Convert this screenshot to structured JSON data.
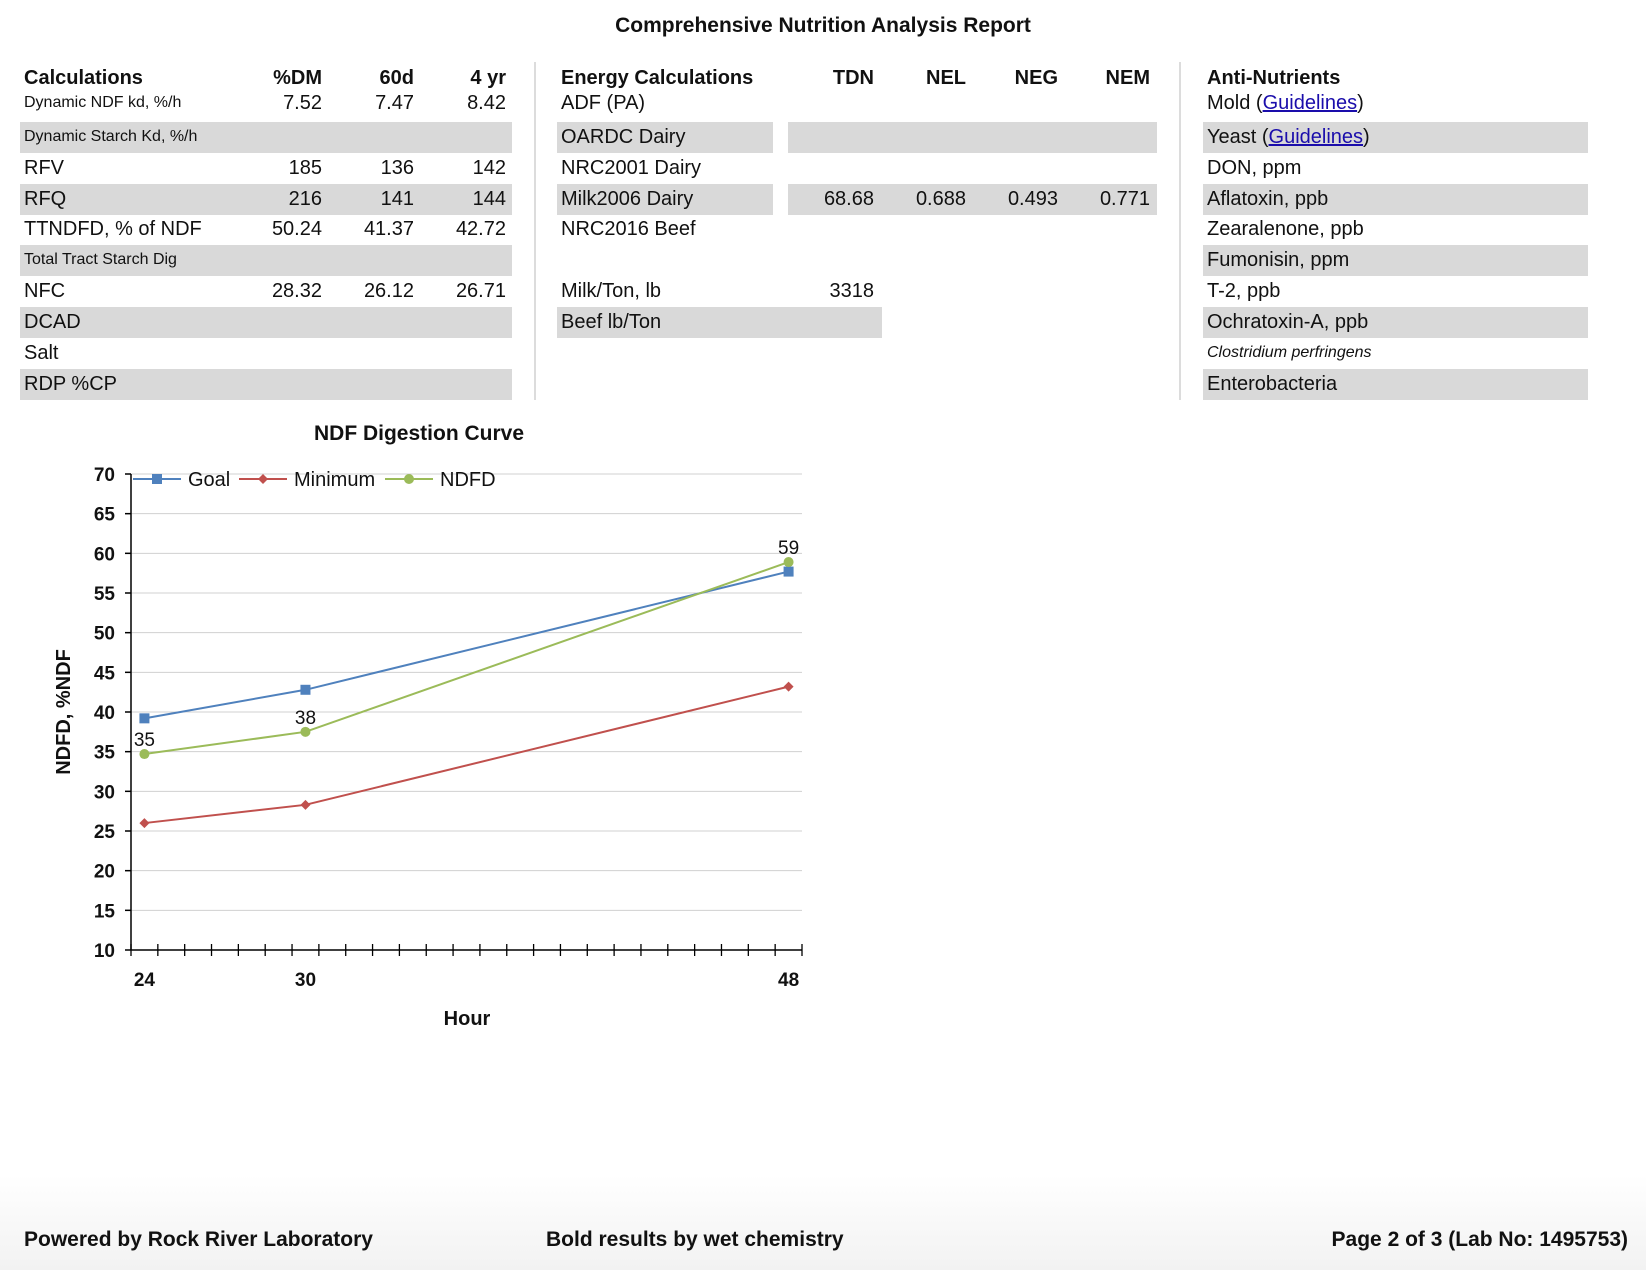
{
  "report_title": "Comprehensive Nutrition Analysis Report",
  "calculations": {
    "headers": [
      "Calculations",
      "%DM",
      "60d",
      "4 yr"
    ],
    "rows": [
      {
        "label": "Dynamic NDF kd, %/h",
        "values": [
          "7.52",
          "7.47",
          "8.42"
        ],
        "small": true
      },
      {
        "label": "Dynamic Starch Kd, %/h",
        "values": [
          "",
          "",
          ""
        ],
        "small": true
      },
      {
        "label": "RFV",
        "values": [
          "185",
          "136",
          "142"
        ]
      },
      {
        "label": "RFQ",
        "values": [
          "216",
          "141",
          "144"
        ]
      },
      {
        "label": "TTNDFD, % of NDF",
        "values": [
          "50.24",
          "41.37",
          "42.72"
        ]
      },
      {
        "label": "Total Tract Starch Dig",
        "values": [
          "",
          "",
          ""
        ],
        "small": true
      },
      {
        "label": "NFC",
        "values": [
          "28.32",
          "26.12",
          "26.71"
        ]
      },
      {
        "label": "DCAD",
        "values": [
          "",
          "",
          ""
        ]
      },
      {
        "label": "Salt",
        "values": [
          "",
          "",
          ""
        ]
      },
      {
        "label": "RDP %CP",
        "values": [
          "",
          "",
          ""
        ]
      }
    ]
  },
  "energy": {
    "headers": [
      "Energy Calculations",
      "TDN",
      "NEL",
      "NEG",
      "NEM"
    ],
    "rows": [
      {
        "label": "ADF (PA)",
        "values": [
          "",
          "",
          "",
          ""
        ]
      },
      {
        "label": "OARDC Dairy",
        "values": [
          "",
          "",
          "",
          ""
        ]
      },
      {
        "label": "NRC2001 Dairy",
        "values": [
          "",
          "",
          "",
          ""
        ]
      },
      {
        "label": "Milk2006 Dairy",
        "values": [
          "68.68",
          "0.688",
          "0.493",
          "0.771"
        ]
      },
      {
        "label": "NRC2016 Beef",
        "values": [
          "",
          "",
          "",
          ""
        ]
      },
      {
        "label": "Milk/Ton, lb",
        "values": [
          "3318"
        ]
      },
      {
        "label": "Beef lb/Ton",
        "values": [
          ""
        ]
      }
    ]
  },
  "anti_nutrients": {
    "header": "Anti-Nutrients",
    "link_text": "Guidelines",
    "rows": [
      {
        "label": "Mold",
        "link": true
      },
      {
        "label": "Yeast",
        "link": true
      },
      {
        "label": "DON, ppm"
      },
      {
        "label": "Aflatoxin, ppb"
      },
      {
        "label": "Zearalenone, ppb"
      },
      {
        "label": "Fumonisin, ppm"
      },
      {
        "label": "T-2, ppb"
      },
      {
        "label": "Ochratoxin-A, ppb"
      },
      {
        "label": "Clostridium perfringens",
        "italic": true
      },
      {
        "label": "Enterobacteria"
      }
    ]
  },
  "chart_data": {
    "type": "line",
    "title": "NDF Digestion Curve",
    "xlabel": "Hour",
    "ylabel": "NDFD, %NDF",
    "x": [
      24,
      30,
      48
    ],
    "xlim": [
      23.5,
      48.5
    ],
    "ylim": [
      10,
      70
    ],
    "yticks": [
      10,
      15,
      20,
      25,
      30,
      35,
      40,
      45,
      50,
      55,
      60,
      65,
      70
    ],
    "xtick_labels": [
      "24",
      "30",
      "48"
    ],
    "grid": true,
    "legend_position": "top-left",
    "series": [
      {
        "name": "Goal",
        "values": [
          39.2,
          42.8,
          57.7
        ],
        "color": "#4f81bd",
        "marker": "square",
        "data_labels": [
          "",
          "",
          ""
        ]
      },
      {
        "name": "Minimum",
        "values": [
          26.0,
          28.3,
          43.2
        ],
        "color": "#c0504d",
        "marker": "diamond",
        "data_labels": [
          "",
          "",
          ""
        ]
      },
      {
        "name": "NDFD",
        "values": [
          34.7,
          37.5,
          58.9
        ],
        "color": "#9bbb59",
        "marker": "circle",
        "data_labels": [
          "35",
          "38",
          "59"
        ]
      }
    ]
  },
  "footer": {
    "left": "Powered by Rock River Laboratory",
    "center": "Bold results by wet chemistry",
    "right": "Page 2 of 3 (Lab No: 1495753)"
  }
}
